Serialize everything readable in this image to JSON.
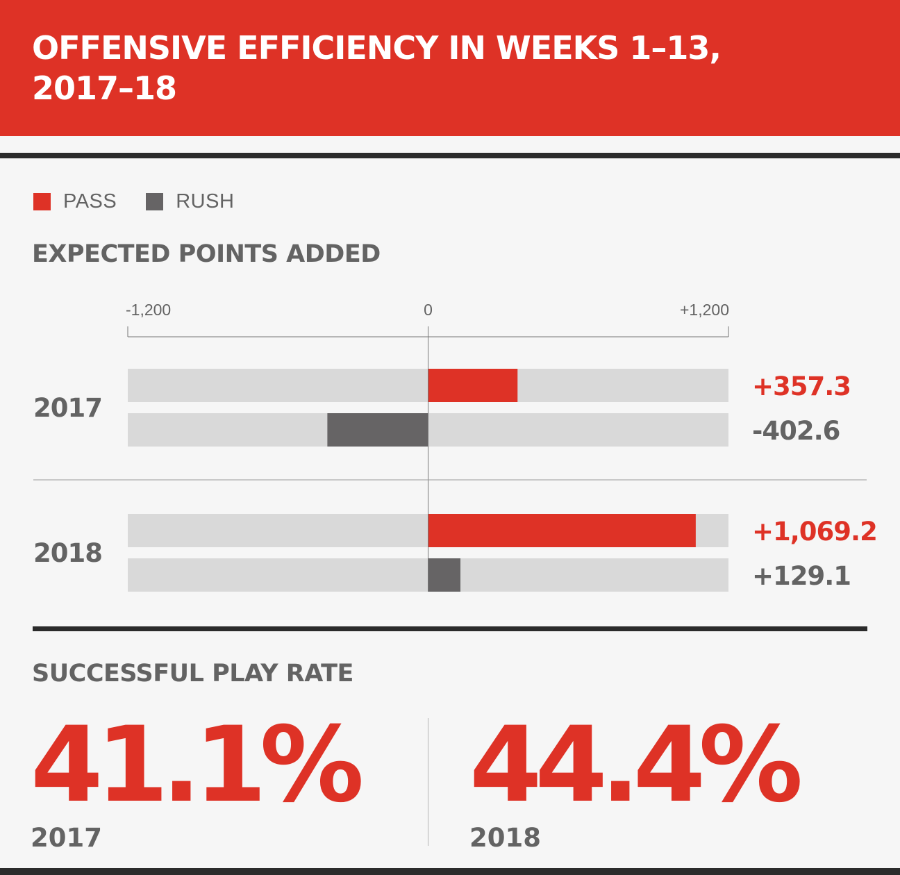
{
  "title": "OFFENSIVE EFFICIENCY IN WEEKS 1–13, 2017–18",
  "legend": [
    {
      "label": "PASS",
      "color": "#de3226"
    },
    {
      "label": "RUSH",
      "color": "#666465"
    }
  ],
  "colors": {
    "pass": "#de3226",
    "rush": "#666465",
    "track": "#d9d9d9",
    "text": "#636363",
    "accent": "#de3226"
  },
  "chart_data": {
    "type": "bar",
    "title": "EXPECTED POINTS ADDED",
    "orientation": "horizontal",
    "xlim": [
      -1200,
      1200
    ],
    "ticks": [
      {
        "value": -1200,
        "label": "-1,200"
      },
      {
        "value": 0,
        "label": "0"
      },
      {
        "value": 1200,
        "label": "+1,200"
      }
    ],
    "categories": [
      "2017",
      "2018"
    ],
    "series": [
      {
        "name": "PASS",
        "values": [
          357.3,
          1069.2
        ],
        "labels": [
          "+357.3",
          "+1,069.2"
        ]
      },
      {
        "name": "RUSH",
        "values": [
          -402.6,
          129.1
        ],
        "labels": [
          "-402.6",
          "+129.1"
        ]
      }
    ]
  },
  "success_rate": {
    "title": "SUCCESSFUL PLAY RATE",
    "stats": [
      {
        "value": "41.1%",
        "year": "2017"
      },
      {
        "value": "44.4%",
        "year": "2018"
      }
    ]
  }
}
